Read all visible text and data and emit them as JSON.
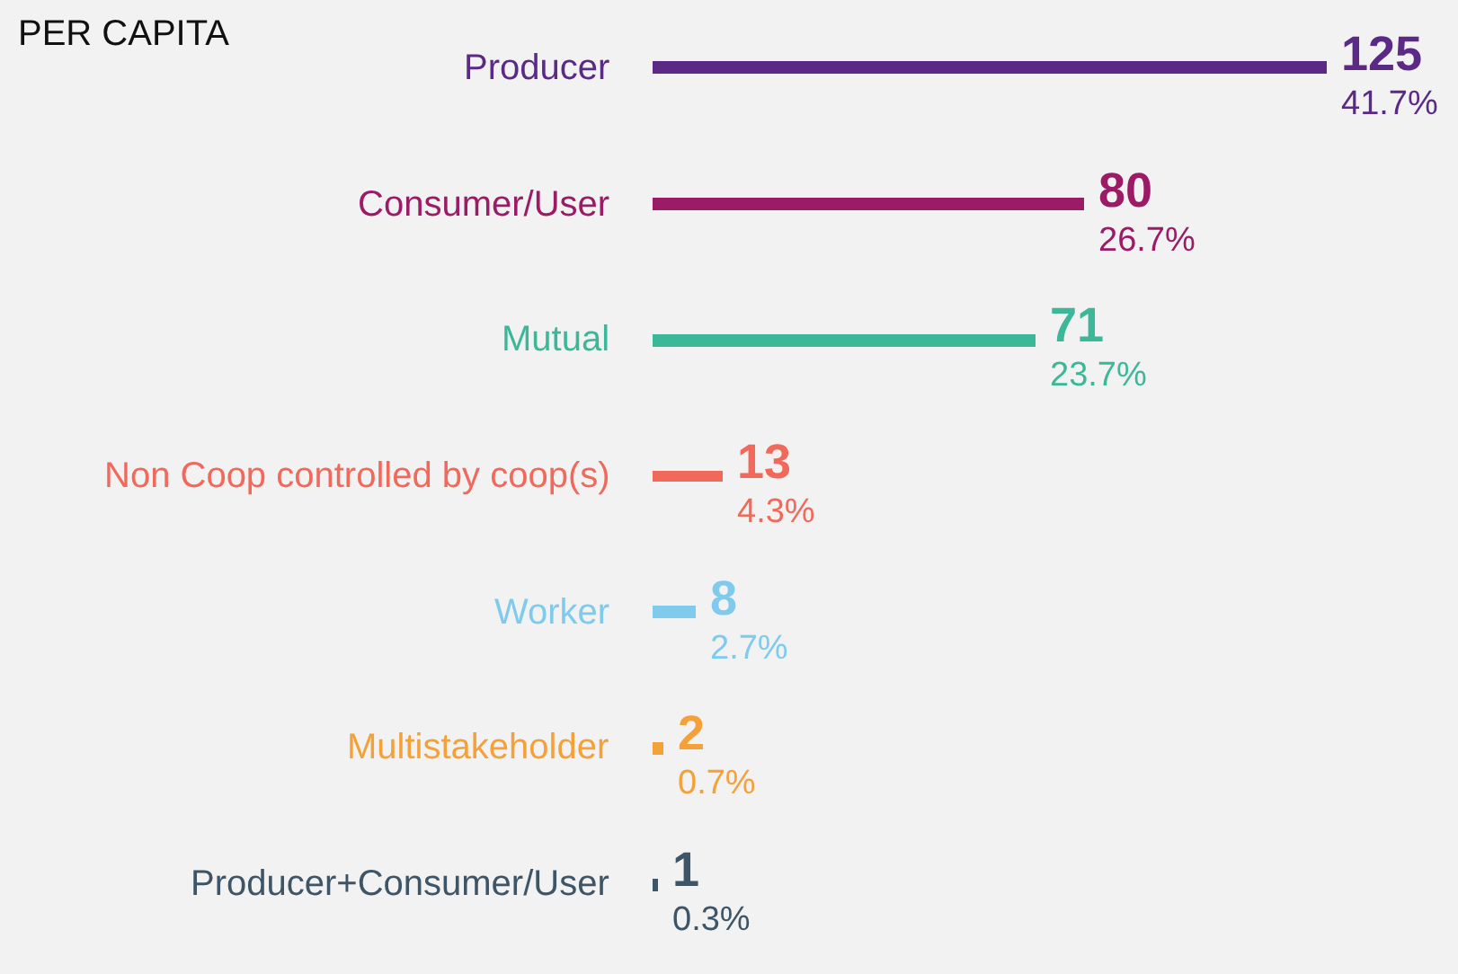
{
  "chart_data": {
    "type": "bar",
    "orientation": "horizontal",
    "title": "PER CAPITA",
    "categories": [
      "Producer",
      "Consumer/User",
      "Mutual",
      "Non Coop controlled by coop(s)",
      "Worker",
      "Multistakeholder",
      "Producer+Consumer/User"
    ],
    "values": [
      125,
      80,
      71,
      13,
      8,
      2,
      1
    ],
    "colors": [
      "#5b2a86",
      "#9b1b66",
      "#3cb899",
      "#f0695a",
      "#7ecbee",
      "#f4a13a",
      "#3d5566"
    ],
    "value_labels": [
      "125\n41.7%",
      "80\n26.7%",
      "71\n23.7%",
      "13\n4.3%",
      "8\n2.7%",
      "2\n0.7%",
      "1\n0.3%"
    ],
    "xlim": [
      0,
      125
    ]
  }
}
